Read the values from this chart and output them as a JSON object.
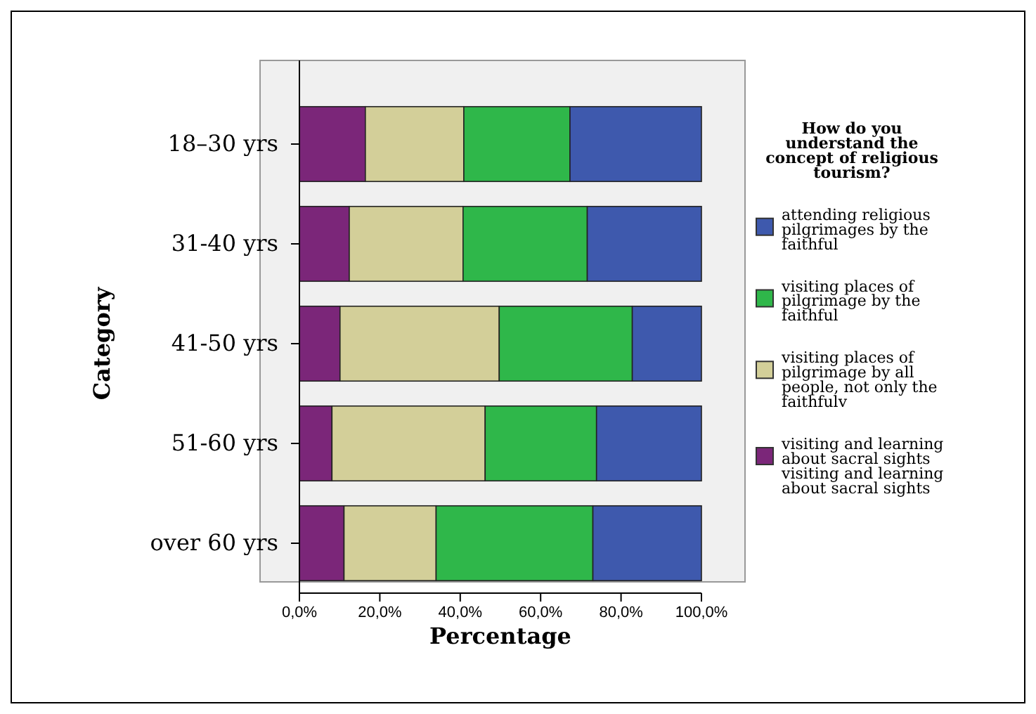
{
  "chart_data": {
    "type": "bar",
    "orientation": "horizontal",
    "stacked": true,
    "xlabel": "Percentage",
    "ylabel": "Category",
    "legend_title": "How do you understand the concept of religious tourism?",
    "legend": "right",
    "categories": [
      "18–30 yrs",
      "31-40 yrs",
      "41-50 yrs",
      "51-60 yrs",
      "over 60 yrs"
    ],
    "xlim": [
      0,
      100
    ],
    "xticks": [
      {
        "value": 0,
        "label": "0,0%"
      },
      {
        "value": 20,
        "label": "20,0%"
      },
      {
        "value": 40,
        "label": "40,0%"
      },
      {
        "value": 60,
        "label": "60,0%"
      },
      {
        "value": 80,
        "label": "80,0%"
      },
      {
        "value": 100,
        "label": "100,0%"
      }
    ],
    "grid": false,
    "series": [
      {
        "name": "visiting and learning about sacral sights visiting and learning about sacral sights",
        "color": "#7b2679",
        "values": [
          16.4,
          12.4,
          10.1,
          8.1,
          11.1
        ]
      },
      {
        "name": "visiting places of pilgrimage by all people, not only the faithfulv",
        "color": "#d3cf99",
        "values": [
          24.5,
          28.3,
          39.6,
          38.1,
          22.9
        ]
      },
      {
        "name": "visiting places of pilgrimage by the faithful",
        "color": "#2fb74a",
        "values": [
          26.4,
          30.9,
          33.1,
          27.7,
          39.0
        ]
      },
      {
        "name": "attending religious pilgrimages by the faithful",
        "color": "#3e59ad",
        "values": [
          32.7,
          28.4,
          17.2,
          26.1,
          27.0
        ]
      }
    ]
  }
}
